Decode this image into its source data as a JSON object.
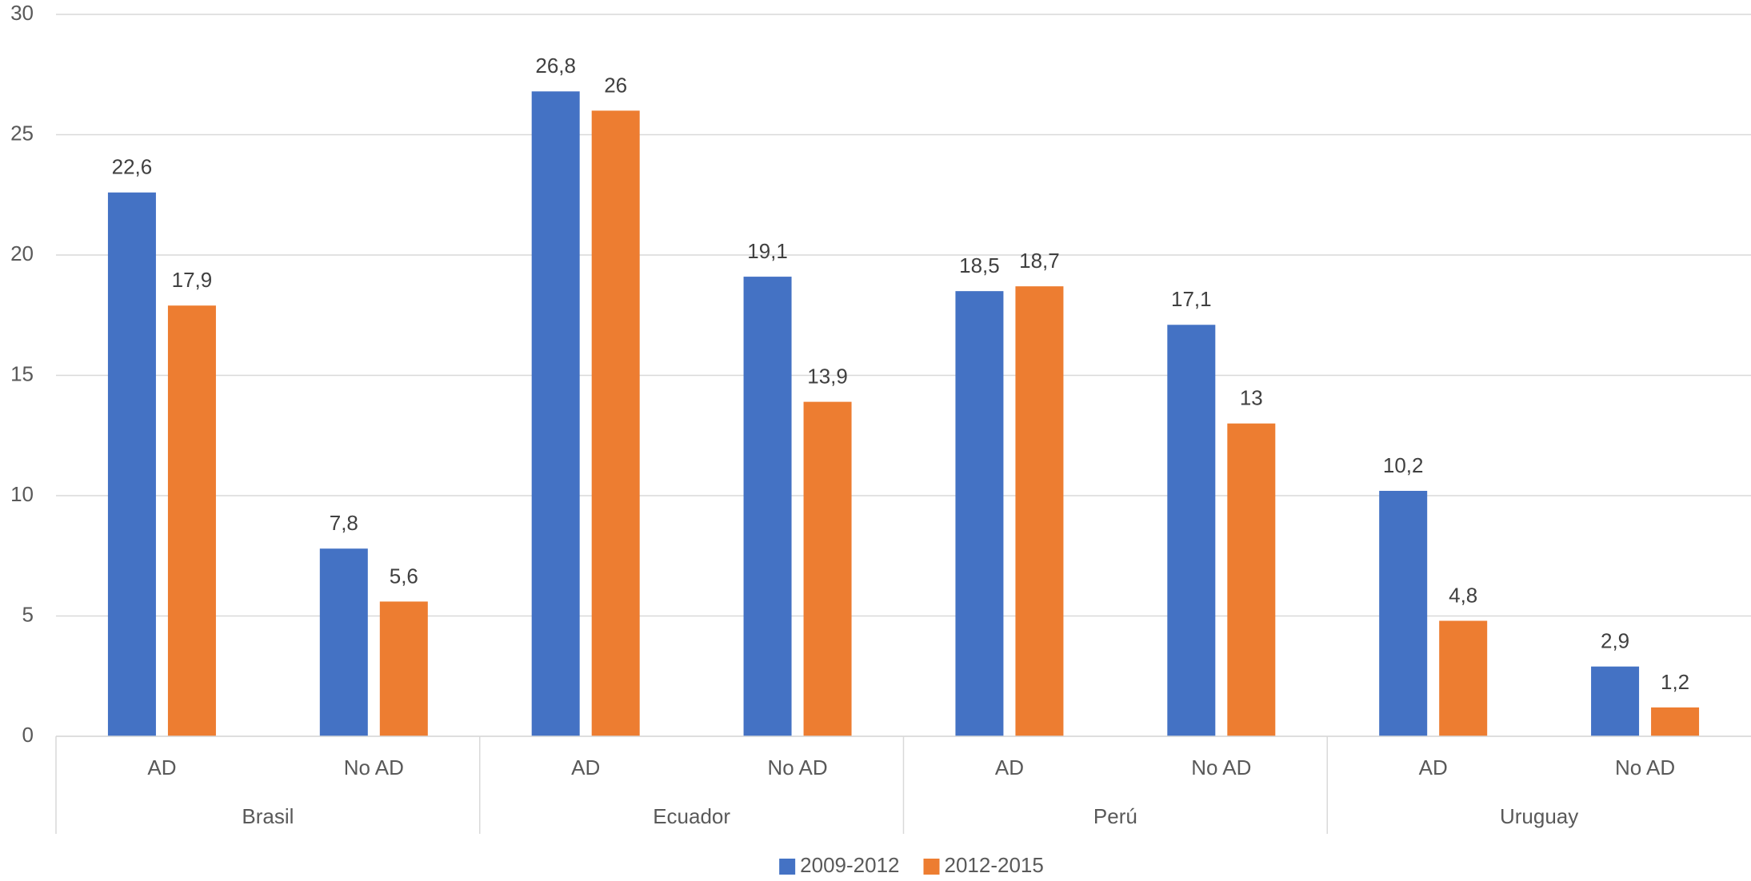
{
  "chart_data": {
    "type": "bar",
    "categories": [
      "AD",
      "No AD",
      "AD",
      "No AD",
      "AD",
      "No AD",
      "AD",
      "No AD"
    ],
    "groups": [
      "Brasil",
      "Ecuador",
      "Perú",
      "Uruguay"
    ],
    "series": [
      {
        "name": "2009-2012",
        "color": "#4472c4",
        "values": [
          22.6,
          7.8,
          26.8,
          19.1,
          18.5,
          17.1,
          10.2,
          2.9
        ],
        "value_labels": [
          "22,6",
          "7,8",
          "26,8",
          "19,1",
          "18,5",
          "17,1",
          "10,2",
          "2,9"
        ]
      },
      {
        "name": "2012-2015",
        "color": "#ed7d31",
        "values": [
          17.9,
          5.6,
          26,
          13.9,
          18.7,
          13,
          4.8,
          1.2
        ],
        "value_labels": [
          "17,9",
          "5,6",
          "26",
          "13,9",
          "18,7",
          "13",
          "4,8",
          "1,2"
        ]
      }
    ],
    "ylim": [
      0,
      30
    ],
    "yticks": [
      0,
      5,
      10,
      15,
      20,
      25,
      30
    ],
    "grid": true,
    "legend": "bottom"
  }
}
